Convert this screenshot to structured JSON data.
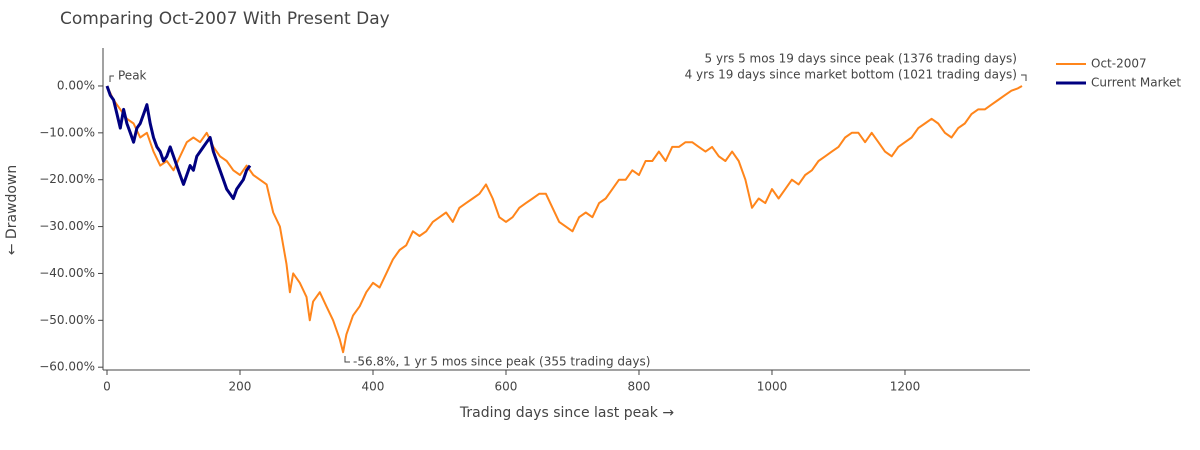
{
  "chart_data": {
    "type": "line",
    "title": "Comparing Oct-2007 With Present Day",
    "x_label": "Trading days since last peak →",
    "y_label": "← Drawdown",
    "annotations": [
      "Peak",
      "-56.8%, 1 yr 5 mos since peak (355 trading days)",
      "5 yrs 5 mos 19 days since peak (1376 trading days)",
      "4 yrs 19 days since market bottom (1021 trading days)"
    ],
    "xlim": [
      -6,
      1388
    ],
    "ylim": [
      -60.6,
      8.1
    ],
    "xticks": [
      0,
      200,
      400,
      600,
      800,
      1000,
      1200
    ],
    "yticks": [
      {
        "value": 0,
        "label": "0.00%"
      },
      {
        "value": -10,
        "label": "−10.00%"
      },
      {
        "value": -20,
        "label": "−20.00%"
      },
      {
        "value": -30,
        "label": "−30.00%"
      },
      {
        "value": -40,
        "label": "−40.00%"
      },
      {
        "value": -50,
        "label": "−50.00%"
      },
      {
        "value": -60,
        "label": "−60.00%"
      }
    ],
    "series": [
      {
        "name": "Oct-2007",
        "color": "#ff851b",
        "x": [
          0,
          10,
          20,
          30,
          40,
          50,
          60,
          70,
          80,
          90,
          100,
          110,
          120,
          130,
          140,
          150,
          160,
          170,
          180,
          190,
          200,
          210,
          220,
          230,
          240,
          250,
          260,
          270,
          275,
          280,
          290,
          300,
          305,
          310,
          320,
          330,
          340,
          350,
          355,
          360,
          370,
          380,
          390,
          400,
          410,
          420,
          430,
          440,
          450,
          460,
          470,
          480,
          490,
          500,
          510,
          520,
          530,
          540,
          550,
          560,
          570,
          580,
          590,
          600,
          610,
          620,
          630,
          640,
          650,
          660,
          670,
          680,
          690,
          700,
          710,
          720,
          730,
          740,
          750,
          760,
          770,
          780,
          790,
          800,
          810,
          820,
          830,
          840,
          850,
          860,
          870,
          880,
          890,
          900,
          910,
          920,
          930,
          940,
          950,
          960,
          970,
          980,
          990,
          1000,
          1010,
          1020,
          1030,
          1040,
          1050,
          1060,
          1070,
          1080,
          1090,
          1100,
          1110,
          1120,
          1130,
          1140,
          1150,
          1160,
          1170,
          1180,
          1190,
          1200,
          1210,
          1220,
          1230,
          1240,
          1250,
          1260,
          1270,
          1280,
          1290,
          1300,
          1310,
          1320,
          1330,
          1340,
          1350,
          1360,
          1370,
          1376
        ],
        "values": [
          0,
          -3,
          -5,
          -7,
          -8,
          -11,
          -10,
          -14,
          -17,
          -16,
          -18,
          -15,
          -12,
          -11,
          -12,
          -10,
          -13,
          -15,
          -16,
          -18,
          -19,
          -17,
          -19,
          -20,
          -21,
          -27,
          -30,
          -38,
          -44,
          -40,
          -42,
          -45,
          -50,
          -46,
          -44,
          -47,
          -50,
          -54,
          -56.8,
          -53,
          -49,
          -47,
          -44,
          -42,
          -43,
          -40,
          -37,
          -35,
          -34,
          -31,
          -32,
          -31,
          -29,
          -28,
          -27,
          -29,
          -26,
          -25,
          -24,
          -23,
          -21,
          -24,
          -28,
          -29,
          -28,
          -26,
          -25,
          -24,
          -23,
          -23,
          -26,
          -29,
          -30,
          -31,
          -28,
          -27,
          -28,
          -25,
          -24,
          -22,
          -20,
          -20,
          -18,
          -19,
          -16,
          -16,
          -14,
          -16,
          -13,
          -13,
          -12,
          -12,
          -13,
          -14,
          -13,
          -15,
          -16,
          -14,
          -16,
          -20,
          -26,
          -24,
          -25,
          -22,
          -24,
          -22,
          -20,
          -21,
          -19,
          -18,
          -16,
          -15,
          -14,
          -13,
          -11,
          -10,
          -10,
          -12,
          -10,
          -12,
          -14,
          -15,
          -13,
          -12,
          -11,
          -9,
          -8,
          -7,
          -8,
          -10,
          -11,
          -9,
          -8,
          -6,
          -5,
          -5,
          -4,
          -3,
          -2,
          -1,
          -0.5,
          0
        ]
      },
      {
        "name": "Current Market",
        "color": "#000080",
        "x": [
          0,
          5,
          10,
          15,
          20,
          25,
          30,
          35,
          40,
          45,
          50,
          55,
          60,
          65,
          70,
          75,
          80,
          85,
          90,
          95,
          100,
          105,
          110,
          115,
          120,
          125,
          130,
          135,
          140,
          145,
          150,
          155,
          160,
          165,
          170,
          175,
          180,
          185,
          190,
          195,
          200,
          205,
          210,
          215
        ],
        "values": [
          0,
          -2,
          -3,
          -6,
          -9,
          -5,
          -8,
          -10,
          -12,
          -9,
          -8,
          -6,
          -4,
          -8,
          -11,
          -13,
          -14,
          -16,
          -15,
          -13,
          -15,
          -17,
          -19,
          -21,
          -19,
          -17,
          -18,
          -15,
          -14,
          -13,
          -12,
          -11,
          -14,
          -16,
          -18,
          -20,
          -22,
          -23,
          -24,
          -22,
          -21,
          -20,
          -18,
          -17
        ]
      }
    ]
  }
}
